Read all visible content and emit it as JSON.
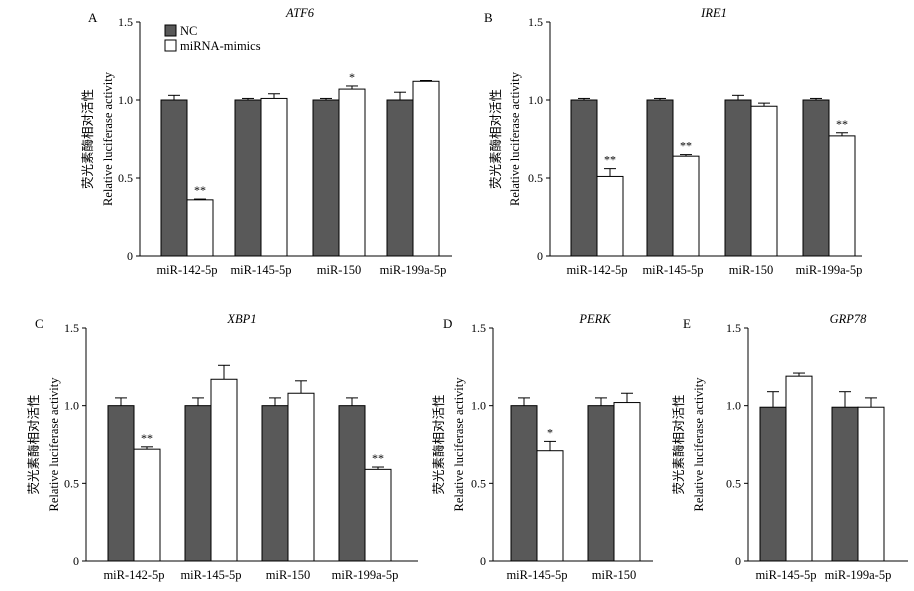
{
  "legend": [
    {
      "name": "NC",
      "color": "#595959"
    },
    {
      "name": "miRNA-mimics",
      "color": "#ffffff"
    }
  ],
  "ylabel_cn": "荧光素酶相对活性",
  "ylabel_en": "Relative luciferase activity",
  "chart_data": [
    {
      "type": "bar",
      "panel": "A",
      "title": "ATF6",
      "ylim": [
        0,
        1.5
      ],
      "yticks": [
        "0",
        "0.5",
        "1.0",
        "1.5"
      ],
      "categories": [
        "miR-142-5p",
        "miR-145-5p",
        "miR-150",
        "miR-199a-5p"
      ],
      "series": [
        {
          "name": "NC",
          "values": [
            1.0,
            1.0,
            1.0,
            1.0
          ],
          "errors": [
            0.03,
            0.01,
            0.01,
            0.05
          ]
        },
        {
          "name": "miRNA-mimics",
          "values": [
            0.36,
            1.01,
            1.07,
            1.12
          ],
          "errors": [
            0.005,
            0.03,
            0.02,
            0.005
          ]
        }
      ],
      "significance": [
        "**",
        "",
        "*",
        ""
      ]
    },
    {
      "type": "bar",
      "panel": "B",
      "title": "IRE1",
      "ylim": [
        0,
        1.5
      ],
      "yticks": [
        "0",
        "0.5",
        "1.0",
        "1.5"
      ],
      "categories": [
        "miR-142-5p",
        "miR-145-5p",
        "miR-150",
        "miR-199a-5p"
      ],
      "series": [
        {
          "name": "NC",
          "values": [
            1.0,
            1.0,
            1.0,
            1.0
          ],
          "errors": [
            0.01,
            0.01,
            0.03,
            0.01
          ]
        },
        {
          "name": "miRNA-mimics",
          "values": [
            0.51,
            0.64,
            0.96,
            0.77
          ],
          "errors": [
            0.05,
            0.01,
            0.02,
            0.02
          ]
        }
      ],
      "significance": [
        "**",
        "**",
        "",
        "**"
      ]
    },
    {
      "type": "bar",
      "panel": "C",
      "title": "XBP1",
      "ylim": [
        0,
        1.5
      ],
      "yticks": [
        "0",
        "0.5",
        "1.0",
        "1.5"
      ],
      "categories": [
        "miR-142-5p",
        "miR-145-5p",
        "miR-150",
        "miR-199a-5p"
      ],
      "series": [
        {
          "name": "NC",
          "values": [
            1.0,
            1.0,
            1.0,
            1.0
          ],
          "errors": [
            0.05,
            0.05,
            0.05,
            0.05
          ]
        },
        {
          "name": "miRNA-mimics",
          "values": [
            0.72,
            1.17,
            1.08,
            0.59
          ],
          "errors": [
            0.015,
            0.09,
            0.08,
            0.015
          ]
        }
      ],
      "significance": [
        "**",
        "",
        "",
        "**"
      ]
    },
    {
      "type": "bar",
      "panel": "D",
      "title": "PERK",
      "ylim": [
        0,
        1.5
      ],
      "yticks": [
        "0",
        "0.5",
        "1.0",
        "1.5"
      ],
      "categories": [
        "miR-145-5p",
        "miR-150"
      ],
      "series": [
        {
          "name": "NC",
          "values": [
            1.0,
            1.0
          ],
          "errors": [
            0.05,
            0.05
          ]
        },
        {
          "name": "miRNA-mimics",
          "values": [
            0.71,
            1.02
          ],
          "errors": [
            0.06,
            0.06
          ]
        }
      ],
      "significance": [
        "*",
        ""
      ]
    },
    {
      "type": "bar",
      "panel": "E",
      "title": "GRP78",
      "ylim": [
        0,
        1.5
      ],
      "yticks": [
        "0",
        "0.5",
        "1.0",
        "1.5"
      ],
      "categories": [
        "miR-145-5p",
        "miR-199a-5p"
      ],
      "series": [
        {
          "name": "NC",
          "values": [
            0.99,
            0.99
          ],
          "errors": [
            0.1,
            0.1
          ]
        },
        {
          "name": "miRNA-mimics",
          "values": [
            1.19,
            0.99
          ],
          "errors": [
            0.02,
            0.06
          ]
        }
      ],
      "significance": [
        "",
        ""
      ]
    }
  ]
}
